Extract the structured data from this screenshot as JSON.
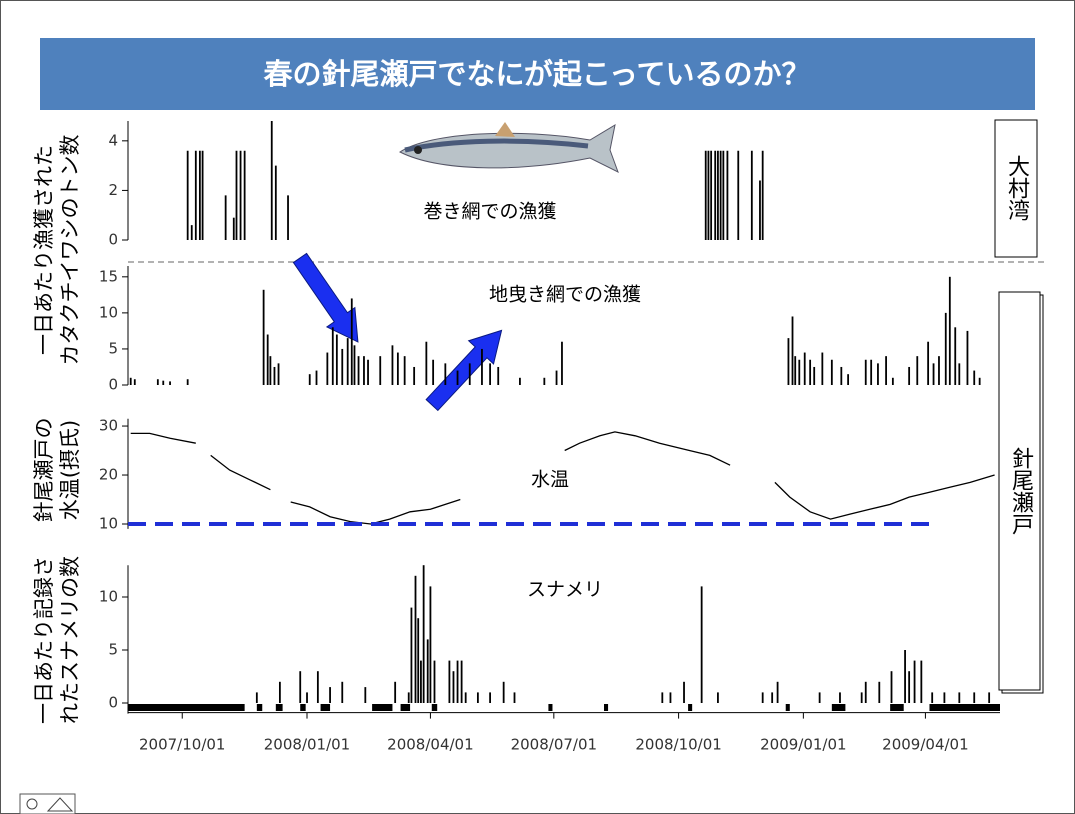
{
  "title": "春の針尾瀬戸でなにが起こっているのか？",
  "regions": [
    {
      "label": "大村湾"
    },
    {
      "label": "針尾瀬戸"
    }
  ],
  "chart_data": [
    {
      "type": "bar",
      "y_label": [
        "一日あたり漁獲された",
        "カタクチイワシのトン数"
      ],
      "annotation": "巻き網での漁獲",
      "color": "#000000",
      "xlim": [
        "2007/08/22",
        "2009/05/26"
      ],
      "ylim": [
        0,
        4.8
      ],
      "yticks": [
        0,
        2,
        4
      ],
      "x": [
        "2007/10/05",
        "2007/10/08",
        "2007/10/11",
        "2007/10/14",
        "2007/10/16",
        "2007/11/02",
        "2007/11/08",
        "2007/11/10",
        "2007/11/13",
        "2007/11/16",
        "2007/12/06",
        "2007/12/09",
        "2007/12/18",
        "2008/10/21",
        "2008/10/23",
        "2008/10/25",
        "2008/10/28",
        "2008/10/30",
        "2008/11/01",
        "2008/11/03",
        "2008/11/06",
        "2008/11/14",
        "2008/11/24",
        "2008/11/30",
        "2008/12/02"
      ],
      "values": [
        3.6,
        0.6,
        3.6,
        3.6,
        3.6,
        1.8,
        0.9,
        3.6,
        3.6,
        3.6,
        4.8,
        3.0,
        1.8,
        3.6,
        3.6,
        3.6,
        3.6,
        3.6,
        3.6,
        3.6,
        3.6,
        3.6,
        3.6,
        2.4,
        3.6
      ]
    },
    {
      "type": "bar",
      "annotation": "地曳き網での漁獲",
      "color": "#000000",
      "xlim": [
        "2007/08/22",
        "2009/05/26"
      ],
      "ylim": [
        0,
        16.5
      ],
      "yticks": [
        0,
        5,
        10,
        15
      ],
      "x": [
        "2007/08/24",
        "2007/08/27",
        "2007/09/13",
        "2007/09/17",
        "2007/09/22",
        "2007/10/05",
        "2007/11/30",
        "2007/12/03",
        "2007/12/05",
        "2007/12/08",
        "2007/12/11",
        "2008/01/03",
        "2008/01/08",
        "2008/01/16",
        "2008/01/20",
        "2008/01/23",
        "2008/01/27",
        "2008/01/31",
        "2008/02/03",
        "2008/02/05",
        "2008/02/08",
        "2008/02/12",
        "2008/02/15",
        "2008/02/24",
        "2008/03/04",
        "2008/03/08",
        "2008/03/13",
        "2008/03/20",
        "2008/03/29",
        "2008/04/03",
        "2008/04/12",
        "2008/04/21",
        "2008/04/30",
        "2008/05/09",
        "2008/05/15",
        "2008/05/21",
        "2008/06/06",
        "2008/06/24",
        "2008/07/03",
        "2008/07/07",
        "2008/12/21",
        "2008/12/24",
        "2008/12/26",
        "2008/12/29",
        "2009/01/02",
        "2009/01/06",
        "2009/01/09",
        "2009/01/15",
        "2009/01/22",
        "2009/01/29",
        "2009/02/03",
        "2009/02/16",
        "2009/02/20",
        "2009/02/25",
        "2009/03/03",
        "2009/03/08",
        "2009/03/20",
        "2009/03/26",
        "2009/04/03",
        "2009/04/07",
        "2009/04/11",
        "2009/04/16",
        "2009/04/19",
        "2009/04/23",
        "2009/04/26",
        "2009/05/02",
        "2009/05/07",
        "2009/05/11"
      ],
      "values": [
        1,
        0.8,
        0.8,
        0.6,
        0.5,
        0.8,
        13.2,
        7,
        4,
        2.5,
        3,
        1.5,
        2,
        4.5,
        8,
        7,
        5,
        6.5,
        12,
        5.5,
        4,
        4,
        3.5,
        4,
        5.5,
        4.5,
        4,
        2.5,
        6,
        3.5,
        3,
        2,
        3,
        5,
        3,
        2.5,
        1,
        1,
        2,
        6,
        6.5,
        9.5,
        4,
        3.5,
        4.5,
        3.5,
        2.5,
        4.5,
        3.5,
        2.5,
        1.5,
        3.5,
        3.5,
        3,
        4,
        1,
        2.5,
        4,
        6,
        3,
        4,
        10,
        15,
        8,
        3,
        7.5,
        2,
        1
      ]
    },
    {
      "type": "line",
      "y_label": [
        "針尾瀬戸の",
        "水温(摂氏)"
      ],
      "annotation": "水温",
      "color": "#000000",
      "xlim": [
        "2007/08/22",
        "2009/05/26"
      ],
      "ylim": [
        9,
        31.5
      ],
      "yticks": [
        10,
        20,
        30
      ],
      "x": [
        "2007/08/24",
        "2007/09/07",
        "2007/09/22",
        "2007/10/11",
        "2007/10/16",
        "2007/10/22",
        "2007/11/05",
        "2007/11/20",
        "2007/12/05",
        "2007/12/12",
        "2007/12/20",
        "2008/01/03",
        "2008/01/18",
        "2008/02/02",
        "2008/02/17",
        "2008/03/02",
        "2008/03/17",
        "2008/04/01",
        "2008/04/12",
        "2008/04/23",
        "2008/05/30",
        "2008/07/09",
        "2008/07/20",
        "2008/08/04",
        "2008/08/15",
        "2008/08/30",
        "2008/09/17",
        "2008/10/09",
        "2008/10/24",
        "2008/11/08",
        "2008/11/25",
        "2008/12/11",
        "2008/12/22",
        "2009/01/06",
        "2009/01/21",
        "2009/02/04",
        "2009/02/19",
        "2009/03/06",
        "2009/03/20",
        "2009/04/04",
        "2009/04/19",
        "2009/05/04",
        "2009/05/22"
      ],
      "values": [
        28.5,
        28.5,
        27.5,
        26.5,
        null,
        24,
        21,
        19,
        17,
        null,
        14.5,
        13.5,
        11.5,
        10.5,
        10,
        11,
        12.5,
        13,
        14,
        15,
        null,
        25,
        26.5,
        28,
        28.8,
        28,
        26.5,
        25,
        24,
        22,
        null,
        18.5,
        15.5,
        12.5,
        11,
        12,
        13,
        14,
        15.5,
        16.5,
        17.5,
        18.5,
        20
      ],
      "reference_line": {
        "value": 10,
        "x": [
          "2007/08/22",
          "2009/04/04"
        ],
        "color": "#1f2fd6"
      }
    },
    {
      "type": "bar",
      "y_label": [
        "一日あたり記録さ",
        "れたスナメリの数"
      ],
      "annotation": "スナメリ",
      "color": "#000000",
      "xlim": [
        "2007/08/22",
        "2009/05/26"
      ],
      "ylim": [
        -1,
        13
      ],
      "yticks": [
        0,
        5,
        10
      ],
      "xticks": [
        "2007/10/01",
        "2008/01/01",
        "2008/04/01",
        "2008/07/01",
        "2008/10/01",
        "2009/01/01",
        "2009/04/01"
      ],
      "x": [
        "2007/11/25",
        "2007/12/12",
        "2007/12/27",
        "2008/01/01",
        "2008/01/09",
        "2008/01/18",
        "2008/01/27",
        "2008/02/13",
        "2008/03/06",
        "2008/03/16",
        "2008/03/18",
        "2008/03/21",
        "2008/03/23",
        "2008/03/25",
        "2008/03/27",
        "2008/03/30",
        "2008/04/01",
        "2008/04/04",
        "2008/04/15",
        "2008/04/18",
        "2008/04/21",
        "2008/04/24",
        "2008/04/27",
        "2008/05/06",
        "2008/05/15",
        "2008/05/25",
        "2008/06/02",
        "2008/09/19",
        "2008/09/25",
        "2008/10/05",
        "2008/10/18",
        "2008/10/30",
        "2008/12/02",
        "2008/12/09",
        "2008/12/13",
        "2009/01/13",
        "2009/01/28",
        "2009/02/13",
        "2009/02/16",
        "2009/02/26",
        "2009/03/07",
        "2009/03/17",
        "2009/03/20",
        "2009/03/24",
        "2009/03/29",
        "2009/04/06",
        "2009/04/15",
        "2009/04/26",
        "2009/05/07",
        "2009/05/18"
      ],
      "values": [
        1,
        2,
        3,
        1,
        3,
        1.5,
        2,
        1.5,
        2,
        1,
        9,
        12,
        8,
        4,
        13,
        6,
        11,
        4,
        4,
        3,
        4,
        4,
        1,
        1,
        1,
        2,
        1,
        1,
        1,
        2,
        11,
        1,
        1,
        1,
        2,
        1,
        1,
        1,
        2,
        2,
        3,
        5,
        3,
        4,
        4,
        1,
        1,
        1,
        1,
        1
      ],
      "recording_periods": [
        [
          "2007/08/22",
          "2007/11/16"
        ],
        [
          "2007/11/25",
          "2007/11/29"
        ],
        [
          "2007/12/09",
          "2007/12/14"
        ],
        [
          "2007/12/27",
          "2007/12/31"
        ],
        [
          "2008/01/11",
          "2008/01/18"
        ],
        [
          "2008/02/18",
          "2008/03/04"
        ],
        [
          "2008/03/10",
          "2008/03/17"
        ],
        [
          "2008/04/02",
          "2008/04/06"
        ],
        [
          "2008/06/27",
          "2008/06/30"
        ],
        [
          "2008/08/07",
          "2008/08/10"
        ],
        [
          "2008/10/08",
          "2008/10/11"
        ],
        [
          "2008/12/19",
          "2008/12/22"
        ],
        [
          "2009/01/22",
          "2009/02/01"
        ],
        [
          "2009/03/06",
          "2009/03/16"
        ],
        [
          "2009/04/04",
          "2009/05/26"
        ]
      ]
    }
  ]
}
